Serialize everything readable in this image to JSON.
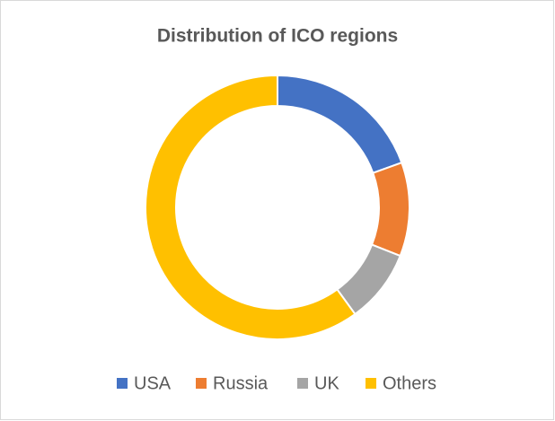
{
  "chart_data": {
    "type": "donut",
    "title": "Distribution of ICO regions",
    "categories": [
      "USA",
      "Russia",
      "UK",
      "Others"
    ],
    "values": [
      19.5,
      11.5,
      9,
      60
    ],
    "colors": [
      "#4472c4",
      "#ed7d31",
      "#a5a5a5",
      "#ffc000"
    ],
    "legend": "bottom"
  }
}
